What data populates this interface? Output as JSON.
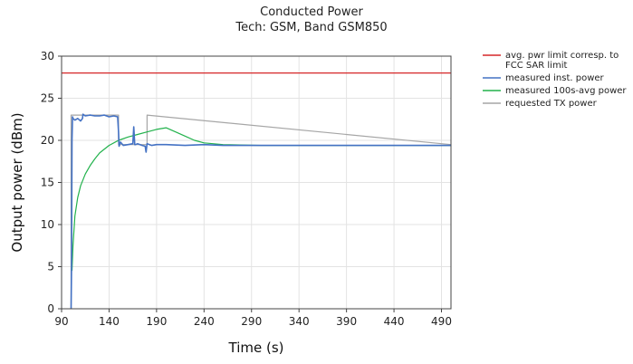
{
  "chart_data": {
    "type": "line",
    "title": "Conducted Power",
    "subtitle": "Tech: GSM, Band GSM850",
    "xlabel": "Time (s)",
    "ylabel": "Output power (dBm)",
    "xlim": [
      90,
      500
    ],
    "ylim": [
      0,
      30
    ],
    "xticks": [
      90,
      140,
      190,
      240,
      290,
      340,
      390,
      440,
      490
    ],
    "yticks": [
      0,
      5,
      10,
      15,
      20,
      25,
      30
    ],
    "grid": true,
    "legend_position": "top-right-outside",
    "series": [
      {
        "name": "avg. pwr limit corresp. to FCC SAR limit",
        "name_lines": [
          "avg. pwr limit corresp. to",
          "FCC SAR limit"
        ],
        "color": "#d62728",
        "x": [
          90,
          500
        ],
        "y": [
          28,
          28
        ]
      },
      {
        "name": "measured inst. power",
        "name_lines": [
          "measured inst. power"
        ],
        "color": "#4472c4",
        "x": [
          100,
          100.5,
          101,
          101.5,
          102,
          104,
          107,
          110,
          112,
          112.5,
          115,
          120,
          125,
          130,
          135,
          140,
          145,
          149,
          150,
          150.5,
          152,
          155,
          160,
          165,
          166,
          167,
          168,
          170,
          175,
          178,
          179,
          180,
          185,
          190,
          200,
          220,
          240,
          260,
          300,
          340,
          380,
          420,
          460,
          500
        ],
        "y": [
          0,
          5,
          20,
          22.8,
          22.6,
          22.4,
          22.6,
          22.3,
          22.6,
          23.1,
          22.9,
          23.0,
          22.9,
          22.9,
          23.0,
          22.8,
          22.9,
          22.8,
          21.0,
          19.3,
          19.8,
          19.4,
          19.5,
          19.6,
          21.6,
          19.5,
          19.5,
          19.6,
          19.4,
          19.3,
          18.6,
          19.6,
          19.4,
          19.5,
          19.5,
          19.4,
          19.5,
          19.4,
          19.4,
          19.4,
          19.4,
          19.4,
          19.4,
          19.4
        ]
      },
      {
        "name": "measured 100s-avg power",
        "name_lines": [
          "measured 100s-avg power"
        ],
        "color": "#22b24c",
        "x": [
          101,
          102,
          104,
          107,
          110,
          115,
          120,
          125,
          130,
          140,
          150,
          160,
          170,
          180,
          190,
          200,
          210,
          220,
          230,
          240,
          260,
          300,
          340,
          380,
          420,
          460,
          500
        ],
        "y": [
          4.5,
          7.5,
          11.0,
          13.2,
          14.6,
          16.0,
          17.0,
          17.8,
          18.5,
          19.4,
          20.0,
          20.4,
          20.7,
          21.0,
          21.3,
          21.5,
          21.0,
          20.5,
          20.0,
          19.7,
          19.5,
          19.4,
          19.4,
          19.4,
          19.4,
          19.4,
          19.4
        ]
      },
      {
        "name": "requested TX power",
        "name_lines": [
          "requested TX power"
        ],
        "color": "#a6a6a6",
        "x": [
          100,
          100,
          150,
          150,
          180,
          180,
          500
        ],
        "y": [
          0,
          23,
          23,
          19.5,
          19.5,
          23,
          19.5
        ]
      }
    ]
  }
}
